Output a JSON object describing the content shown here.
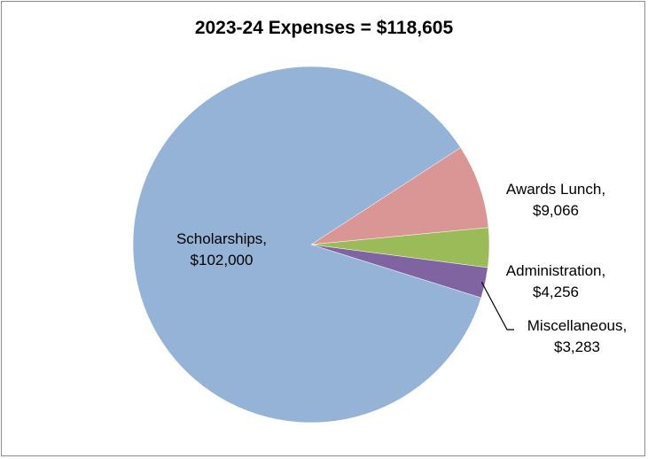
{
  "chart_data": {
    "type": "pie",
    "title": "2023-24 Expenses = $118,605",
    "slices": [
      {
        "label": "Scholarships",
        "value": 102000,
        "value_label": "$102,000",
        "color": "#95b3d7"
      },
      {
        "label": "Awards Lunch",
        "value": 9066,
        "value_label": "$9,066",
        "color": "#d99694"
      },
      {
        "label": "Administration",
        "value": 4256,
        "value_label": "$4,256",
        "color": "#9bbb59"
      },
      {
        "label": "Miscellaneous",
        "value": 3283,
        "value_label": "$3,283",
        "color": "#8064a2"
      }
    ],
    "legend": "none",
    "label_style": "category name and value"
  }
}
